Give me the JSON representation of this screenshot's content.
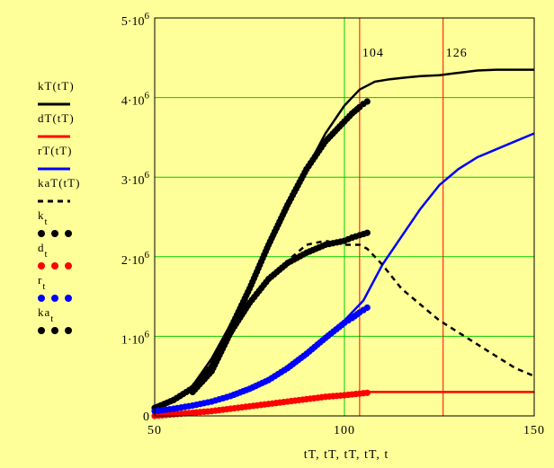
{
  "chart_data": {
    "type": "line",
    "background": "#ffff99",
    "plot_background": "#ffff99",
    "grid_color": "#00cc00",
    "grid": true,
    "xlim": [
      50,
      150
    ],
    "ylim": [
      0,
      5000000
    ],
    "x_ticks": [
      {
        "value": 50,
        "label": "50"
      },
      {
        "value": 100,
        "label": "100"
      },
      {
        "value": 150,
        "label": "150"
      }
    ],
    "y_ticks": [
      {
        "value": 0,
        "label": "0"
      },
      {
        "value": 1000000,
        "base": "1·10",
        "exp": "6"
      },
      {
        "value": 2000000,
        "base": "2·10",
        "exp": "6"
      },
      {
        "value": 3000000,
        "base": "3·10",
        "exp": "6"
      },
      {
        "value": 4000000,
        "base": "4·10",
        "exp": "6"
      },
      {
        "value": 5000000,
        "base": "5·10",
        "exp": "6"
      }
    ],
    "xlabel": "tT, tT, tT, tT, t",
    "markers": [
      {
        "x": 104,
        "label": "104",
        "color": "#ff0000"
      },
      {
        "x": 126,
        "label": "126",
        "color": "#ff0000"
      }
    ],
    "legend_position": "left",
    "series": [
      {
        "name": "kT(tT)",
        "style": "line",
        "color": "#000000",
        "x": [
          50,
          55,
          60,
          65,
          70,
          75,
          80,
          85,
          90,
          95,
          100,
          104,
          108,
          112,
          116,
          120,
          125,
          130,
          135,
          140,
          145,
          150
        ],
        "values": [
          80000,
          200000,
          380000,
          720000,
          1150000,
          1600000,
          2100000,
          2600000,
          3100000,
          3550000,
          3900000,
          4100000,
          4200000,
          4230000,
          4250000,
          4270000,
          4280000,
          4310000,
          4340000,
          4350000,
          4350000,
          4350000
        ]
      },
      {
        "name": "dT(tT)",
        "style": "line",
        "color": "#ff0000",
        "x": [
          50,
          60,
          70,
          80,
          90,
          100,
          104,
          106,
          110,
          120,
          130,
          140,
          150
        ],
        "values": [
          0,
          40000,
          90000,
          150000,
          210000,
          270000,
          290000,
          300000,
          300000,
          300000,
          300000,
          300000,
          300000
        ]
      },
      {
        "name": "rT(tT)",
        "style": "line",
        "color": "#0000ff",
        "x": [
          50,
          55,
          60,
          65,
          70,
          75,
          80,
          85,
          90,
          95,
          100,
          105,
          110,
          115,
          120,
          125,
          130,
          135,
          140,
          145,
          150
        ],
        "values": [
          60000,
          90000,
          130000,
          180000,
          250000,
          340000,
          450000,
          600000,
          780000,
          980000,
          1200000,
          1450000,
          1900000,
          2250000,
          2600000,
          2900000,
          3100000,
          3250000,
          3350000,
          3450000,
          3550000
        ]
      },
      {
        "name": "kaT(tT)",
        "style": "dashed",
        "color": "#000000",
        "x": [
          60,
          65,
          70,
          75,
          80,
          85,
          90,
          95,
          100,
          104,
          106,
          110,
          115,
          120,
          125,
          130,
          135,
          140,
          145,
          150
        ],
        "values": [
          300000,
          560000,
          1000000,
          1400000,
          1700000,
          1950000,
          2150000,
          2200000,
          2150000,
          2150000,
          2100000,
          1900000,
          1600000,
          1400000,
          1200000,
          1050000,
          900000,
          750000,
          600000,
          500000
        ]
      },
      {
        "name": "k_t",
        "style": "dots",
        "color": "#000000",
        "x": [
          50,
          55,
          60,
          65,
          70,
          75,
          80,
          85,
          90,
          95,
          100,
          102,
          104,
          105,
          106
        ],
        "values": [
          100000,
          200000,
          350000,
          620000,
          1100000,
          1600000,
          2150000,
          2650000,
          3100000,
          3450000,
          3700000,
          3800000,
          3880000,
          3920000,
          3950000
        ]
      },
      {
        "name": "d_t",
        "style": "dots",
        "color": "#ff0000",
        "x": [
          50,
          55,
          60,
          65,
          70,
          75,
          80,
          85,
          90,
          95,
          100,
          102,
          104,
          106
        ],
        "values": [
          0,
          20000,
          40000,
          60000,
          90000,
          120000,
          150000,
          180000,
          210000,
          240000,
          260000,
          270000,
          280000,
          290000
        ]
      },
      {
        "name": "r_t",
        "style": "dots",
        "color": "#0000ff",
        "x": [
          50,
          55,
          60,
          65,
          70,
          75,
          80,
          85,
          90,
          95,
          100,
          102,
          104,
          106
        ],
        "values": [
          60000,
          90000,
          130000,
          180000,
          250000,
          340000,
          450000,
          600000,
          780000,
          980000,
          1170000,
          1230000,
          1300000,
          1360000
        ]
      },
      {
        "name": "ka_t",
        "style": "dots",
        "color": "#000000",
        "x": [
          60,
          65,
          70,
          75,
          80,
          85,
          90,
          95,
          100,
          102,
          104,
          106
        ],
        "values": [
          300000,
          560000,
          1050000,
          1420000,
          1720000,
          1920000,
          2050000,
          2150000,
          2200000,
          2240000,
          2270000,
          2300000
        ]
      }
    ]
  }
}
